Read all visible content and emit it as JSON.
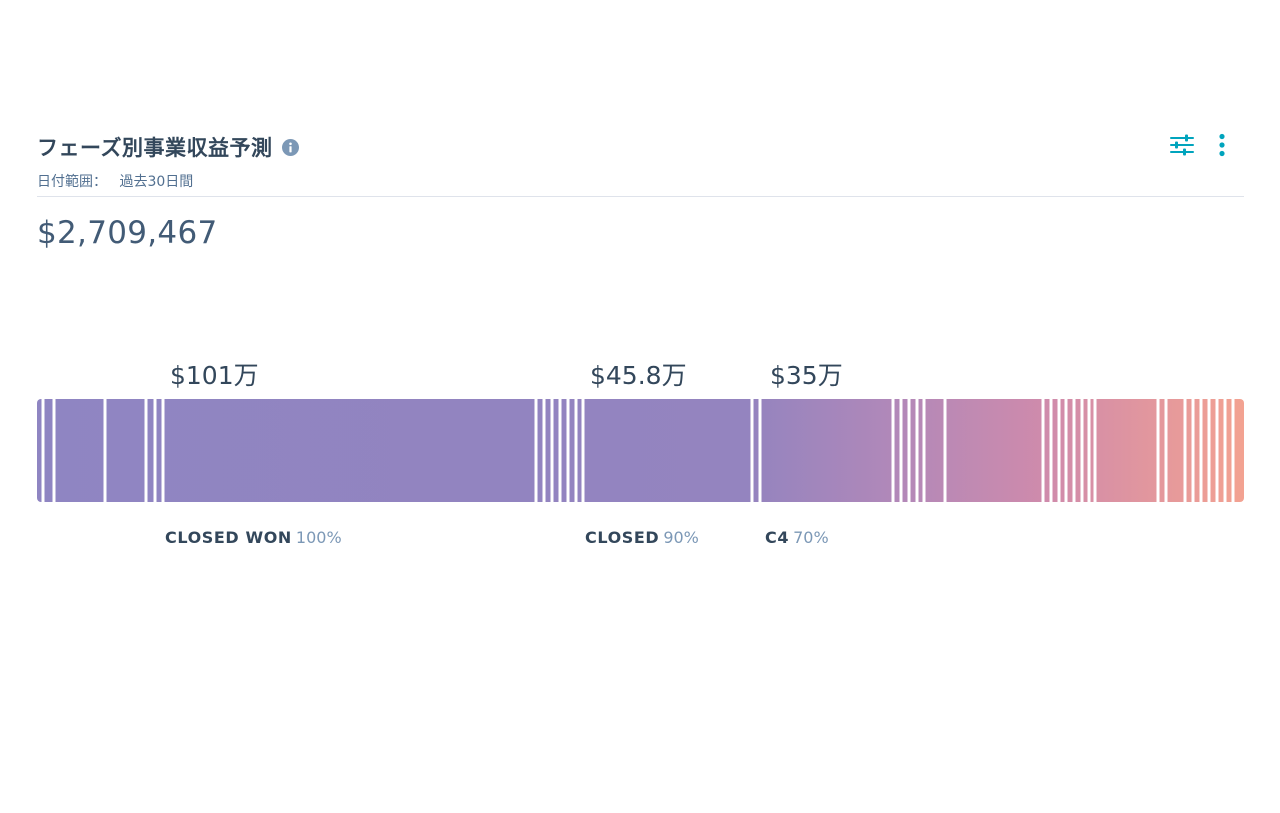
{
  "report": {
    "title": "フェーズ別事業収益予測",
    "date_range_label": "日付範囲：",
    "date_range_value": "過去30日間",
    "total": "$2,709,467"
  },
  "icons": {
    "info": "info-icon",
    "filter": "sliders-icon",
    "more": "vertical-dots-icon"
  },
  "colors": {
    "accent": "#00a4bd",
    "bar_start": "#8f85c2",
    "bar_end": "#f2a193",
    "text_dark": "#33475b",
    "text_muted": "#7c98b6"
  },
  "segments": [
    {
      "value": "$101万",
      "stage": "CLOSED WON",
      "probability": "100%"
    },
    {
      "value": "$45.8万",
      "stage": "CLOSED",
      "probability": "90%"
    },
    {
      "value": "$35万",
      "stage": "C4",
      "probability": "70%"
    }
  ]
}
